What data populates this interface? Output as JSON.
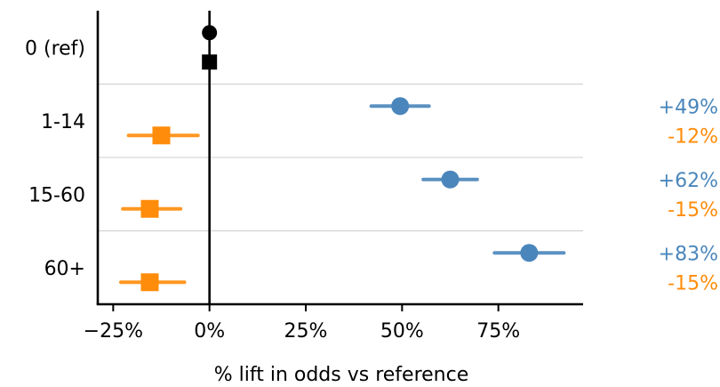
{
  "chart_data": {
    "type": "scatter",
    "subtype": "forest-plot",
    "xlabel": "% lift in odds vs reference",
    "xlim": [
      -29,
      97
    ],
    "xticks": [
      -25,
      0,
      25,
      50,
      75
    ],
    "xtick_labels": [
      "−25%",
      "0%",
      "25%",
      "50%",
      "75%"
    ],
    "categories": [
      "0 (ref)",
      "1-14",
      "15-60",
      "60+"
    ],
    "reference_line_x": 0,
    "grid": "horizontal separators between categories",
    "legend": "none",
    "series": [
      {
        "marker": "circle",
        "color": "#4a86bb",
        "ref_color": "#000000",
        "points": [
          {
            "category": "0 (ref)",
            "estimate": 0,
            "ci_low": null,
            "ci_high": null,
            "label": ""
          },
          {
            "category": "1-14",
            "estimate": 49.5,
            "ci_low": 42,
            "ci_high": 57,
            "label": "+49%"
          },
          {
            "category": "15-60",
            "estimate": 62.5,
            "ci_low": 55.5,
            "ci_high": 69.5,
            "label": "+62%"
          },
          {
            "category": "60+",
            "estimate": 83,
            "ci_low": 74,
            "ci_high": 92,
            "label": "+83%"
          }
        ]
      },
      {
        "marker": "square",
        "color": "#ff8c0a",
        "ref_color": "#000000",
        "points": [
          {
            "category": "0 (ref)",
            "estimate": 0,
            "ci_low": null,
            "ci_high": null,
            "label": ""
          },
          {
            "category": "1-14",
            "estimate": -12.5,
            "ci_low": -21,
            "ci_high": -3,
            "label": "-12%"
          },
          {
            "category": "15-60",
            "estimate": -15.5,
            "ci_low": -22.5,
            "ci_high": -7.5,
            "label": "-15%"
          },
          {
            "category": "60+",
            "estimate": -15.5,
            "ci_low": -23,
            "ci_high": -6.5,
            "label": "-15%"
          }
        ]
      }
    ]
  }
}
